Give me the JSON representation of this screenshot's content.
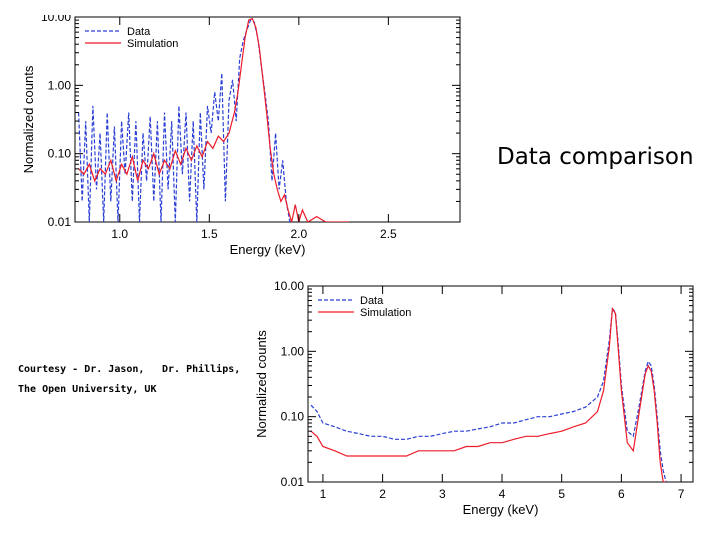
{
  "slide": {
    "title": "Data comparison",
    "credit_line1a": "Courtesy - Dr. Jason,",
    "credit_line1b": "Dr. Phillips,",
    "credit_line2": "The Open University, UK"
  },
  "colors": {
    "data": "#2a3fd6",
    "simulation": "#ee1c2a",
    "axis": "#000000"
  },
  "chart_data": [
    {
      "type": "line",
      "xlabel": "Energy (keV)",
      "ylabel": "Normalized counts",
      "yscale": "log",
      "xlim": [
        0.75,
        2.9
      ],
      "ylim": [
        0.01,
        10.0
      ],
      "xticks": [
        1.0,
        1.5,
        2.0,
        2.5
      ],
      "xtick_labels": [
        "1.0",
        "1.5",
        "2.0",
        "2.5"
      ],
      "yticks": [
        0.01,
        0.1,
        1.0,
        10.0
      ],
      "ytick_labels": [
        "0.01",
        "0.10",
        "1.00",
        "10.00"
      ],
      "legend": [
        "Data",
        "Simulation"
      ],
      "legend_position": "top-left",
      "series": [
        {
          "name": "Data",
          "style": "dashed",
          "x": [
            0.77,
            0.79,
            0.81,
            0.83,
            0.85,
            0.87,
            0.89,
            0.91,
            0.93,
            0.95,
            0.97,
            0.99,
            1.01,
            1.03,
            1.05,
            1.07,
            1.09,
            1.11,
            1.13,
            1.15,
            1.17,
            1.19,
            1.21,
            1.23,
            1.25,
            1.27,
            1.29,
            1.31,
            1.33,
            1.35,
            1.37,
            1.39,
            1.41,
            1.43,
            1.45,
            1.47,
            1.49,
            1.51,
            1.53,
            1.55,
            1.57,
            1.59,
            1.61,
            1.63,
            1.65,
            1.67,
            1.69,
            1.71,
            1.73,
            1.75,
            1.77,
            1.79,
            1.81,
            1.83,
            1.85,
            1.87,
            1.89,
            1.91,
            1.93,
            1.95
          ],
          "y": [
            0.4,
            0.02,
            0.3,
            0.01,
            0.5,
            0.03,
            0.2,
            0.01,
            0.4,
            0.02,
            0.25,
            0.01,
            0.3,
            0.05,
            0.4,
            0.02,
            0.3,
            0.01,
            0.2,
            0.04,
            0.35,
            0.02,
            0.3,
            0.01,
            0.4,
            0.03,
            0.3,
            0.01,
            0.5,
            0.05,
            0.4,
            0.02,
            0.3,
            0.01,
            0.4,
            0.03,
            0.5,
            0.2,
            0.8,
            0.3,
            1.5,
            0.02,
            0.6,
            1.2,
            0.3,
            2.5,
            4.5,
            6.5,
            9.0,
            8.5,
            5.0,
            2.0,
            0.8,
            0.3,
            0.04,
            0.2,
            0.03,
            0.08,
            0.02,
            0.01
          ]
        },
        {
          "name": "Simulation",
          "style": "solid",
          "x": [
            0.77,
            0.8,
            0.83,
            0.86,
            0.89,
            0.92,
            0.95,
            0.98,
            1.01,
            1.04,
            1.07,
            1.1,
            1.13,
            1.16,
            1.19,
            1.22,
            1.25,
            1.28,
            1.31,
            1.34,
            1.37,
            1.4,
            1.43,
            1.46,
            1.49,
            1.52,
            1.55,
            1.58,
            1.61,
            1.64,
            1.66,
            1.68,
            1.7,
            1.72,
            1.74,
            1.76,
            1.78,
            1.8,
            1.82,
            1.84,
            1.86,
            1.88,
            1.9,
            1.92,
            1.94,
            1.96,
            1.98,
            2.0,
            2.02,
            2.05,
            2.1,
            2.15,
            2.2,
            2.28
          ],
          "y": [
            0.06,
            0.05,
            0.07,
            0.04,
            0.06,
            0.05,
            0.08,
            0.04,
            0.07,
            0.05,
            0.09,
            0.04,
            0.08,
            0.06,
            0.1,
            0.05,
            0.08,
            0.06,
            0.11,
            0.07,
            0.12,
            0.08,
            0.13,
            0.09,
            0.15,
            0.12,
            0.18,
            0.15,
            0.2,
            0.4,
            0.8,
            2.0,
            5.0,
            9.0,
            9.5,
            7.0,
            3.5,
            1.2,
            0.4,
            0.12,
            0.05,
            0.03,
            0.02,
            0.025,
            0.015,
            0.01,
            0.018,
            0.01,
            0.015,
            0.01,
            0.012,
            0.01,
            0.01,
            0.01
          ]
        }
      ]
    },
    {
      "type": "line",
      "xlabel": "Energy (keV)",
      "ylabel": "Normalized counts",
      "yscale": "log",
      "xlim": [
        0.75,
        7.2
      ],
      "ylim": [
        0.01,
        10.0
      ],
      "xticks": [
        1,
        2,
        3,
        4,
        5,
        6,
        7
      ],
      "xtick_labels": [
        "1",
        "2",
        "3",
        "4",
        "5",
        "6",
        "7"
      ],
      "yticks": [
        0.01,
        0.1,
        1.0,
        10.0
      ],
      "ytick_labels": [
        "0.01",
        "0.10",
        "1.00",
        "10.00"
      ],
      "legend": [
        "Data",
        "Simulation"
      ],
      "legend_position": "top-left",
      "series": [
        {
          "name": "Data",
          "style": "dashed",
          "x": [
            0.8,
            0.9,
            1.0,
            1.2,
            1.4,
            1.6,
            1.8,
            2.0,
            2.2,
            2.4,
            2.6,
            2.8,
            3.0,
            3.2,
            3.4,
            3.6,
            3.8,
            4.0,
            4.2,
            4.4,
            4.6,
            4.8,
            5.0,
            5.2,
            5.4,
            5.6,
            5.7,
            5.8,
            5.85,
            5.9,
            5.95,
            6.0,
            6.1,
            6.2,
            6.3,
            6.4,
            6.45,
            6.5,
            6.55,
            6.6,
            6.65,
            6.7,
            6.75
          ],
          "y": [
            0.15,
            0.12,
            0.08,
            0.07,
            0.06,
            0.055,
            0.05,
            0.05,
            0.045,
            0.045,
            0.05,
            0.05,
            0.055,
            0.06,
            0.06,
            0.065,
            0.07,
            0.08,
            0.08,
            0.09,
            0.1,
            0.1,
            0.11,
            0.12,
            0.14,
            0.2,
            0.35,
            1.5,
            4.5,
            4.0,
            1.2,
            0.3,
            0.06,
            0.05,
            0.15,
            0.5,
            0.7,
            0.6,
            0.3,
            0.1,
            0.03,
            0.015,
            0.01
          ]
        },
        {
          "name": "Simulation",
          "style": "solid",
          "x": [
            0.8,
            0.9,
            1.0,
            1.2,
            1.4,
            1.6,
            1.8,
            2.0,
            2.2,
            2.4,
            2.6,
            2.8,
            3.0,
            3.2,
            3.4,
            3.6,
            3.8,
            4.0,
            4.2,
            4.4,
            4.6,
            4.8,
            5.0,
            5.2,
            5.4,
            5.6,
            5.7,
            5.8,
            5.85,
            5.9,
            5.95,
            6.0,
            6.1,
            6.2,
            6.3,
            6.4,
            6.45,
            6.5,
            6.55,
            6.6,
            6.65,
            6.7,
            6.75
          ],
          "y": [
            0.06,
            0.05,
            0.035,
            0.03,
            0.025,
            0.025,
            0.025,
            0.025,
            0.025,
            0.025,
            0.03,
            0.03,
            0.03,
            0.03,
            0.035,
            0.035,
            0.04,
            0.04,
            0.045,
            0.05,
            0.05,
            0.055,
            0.06,
            0.07,
            0.08,
            0.12,
            0.25,
            1.2,
            4.5,
            3.8,
            1.0,
            0.25,
            0.04,
            0.03,
            0.12,
            0.45,
            0.6,
            0.5,
            0.25,
            0.08,
            0.02,
            0.01,
            0.01
          ]
        }
      ]
    }
  ]
}
